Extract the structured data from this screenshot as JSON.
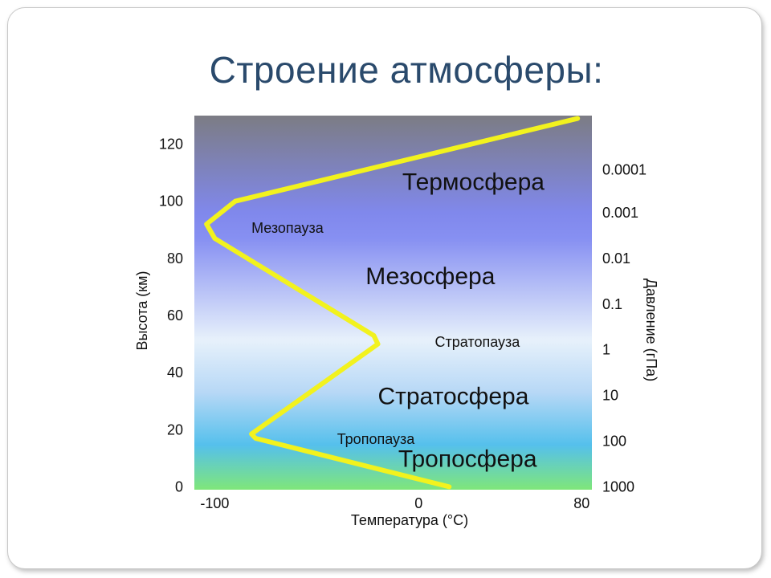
{
  "slide": {
    "title": "Строение атмосферы:"
  },
  "chart_data": {
    "type": "line",
    "xlabel": "Температура (°C)",
    "ylabel": "Высота (км)",
    "y2label": "Давление (гПа)",
    "xlim": [
      -110,
      85
    ],
    "ylim": [
      -1,
      130
    ],
    "x_ticks": [
      "-100",
      "0",
      "80"
    ],
    "y_ticks": [
      "0",
      "20",
      "40",
      "60",
      "80",
      "100",
      "120"
    ],
    "pressure_ticks": [
      {
        "label": "1000",
        "alt": 0
      },
      {
        "label": "100",
        "alt": 16
      },
      {
        "label": "10",
        "alt": 32
      },
      {
        "label": "1",
        "alt": 48
      },
      {
        "label": "0.1",
        "alt": 64
      },
      {
        "label": "0.01",
        "alt": 80
      },
      {
        "label": "0.001",
        "alt": 96
      },
      {
        "label": "0.0001",
        "alt": 111
      }
    ],
    "series": [
      {
        "color": "#f2f21e",
        "points": [
          {
            "x": 15,
            "y": 0
          },
          {
            "x": -80,
            "y": 17
          },
          {
            "x": -82,
            "y": 18.5
          },
          {
            "x": -20,
            "y": 50
          },
          {
            "x": -22,
            "y": 53
          },
          {
            "x": -100,
            "y": 87
          },
          {
            "x": -104,
            "y": 92
          },
          {
            "x": -90,
            "y": 100
          },
          {
            "x": 78,
            "y": 129
          }
        ]
      }
    ],
    "layers": [
      {
        "name": "Тропосфера",
        "size": "big",
        "x": -10,
        "y": 7
      },
      {
        "name": "Тропопауза",
        "size": "small",
        "x": -40,
        "y": 15
      },
      {
        "name": "Стратосфера",
        "size": "big",
        "x": -20,
        "y": 29
      },
      {
        "name": "Стратопауза",
        "size": "small",
        "x": 8,
        "y": 49
      },
      {
        "name": "Мезосфера",
        "size": "big",
        "x": -26,
        "y": 71
      },
      {
        "name": "Мезопауза",
        "size": "small",
        "x": -82,
        "y": 89
      },
      {
        "name": "Термосфера",
        "size": "big",
        "x": -8,
        "y": 104
      }
    ],
    "background_gradient": [
      "#7c7c84",
      "#8088ec",
      "#8790f2",
      "#e7f1fb",
      "#b7d8f6",
      "#55c0ec",
      "#7fe67a"
    ]
  }
}
